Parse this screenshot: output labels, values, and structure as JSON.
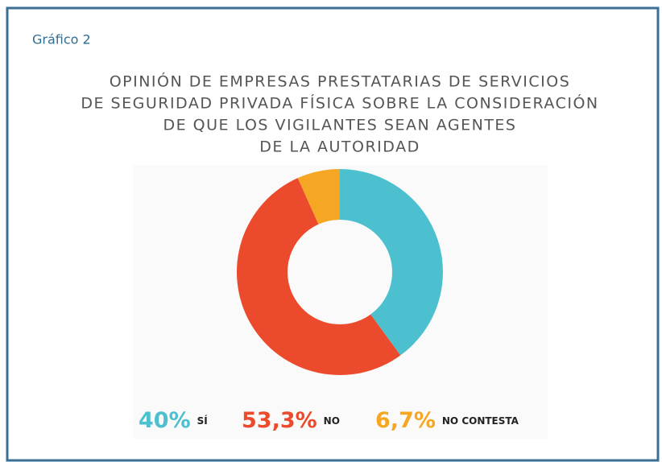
{
  "chart_data": {
    "type": "donut",
    "caption": "Gráfico 2",
    "title": [
      "OPINIÓN DE EMPRESAS PRESTATARIAS DE SERVICIOS",
      "DE SEGURIDAD PRIVADA FÍSICA SOBRE LA CONSIDERACIÓN",
      "DE QUE LOS VIGILANTES SEAN AGENTES",
      "DE LA AUTORIDAD"
    ],
    "categories": [
      "SÍ",
      "NO",
      "NO CONTESTA"
    ],
    "values": [
      40,
      53.3,
      6.7
    ],
    "value_labels": [
      "40%",
      "53,3%",
      "6,7%"
    ],
    "colors": [
      "#4cc0cf",
      "#ec4a2c",
      "#f5a623"
    ]
  }
}
